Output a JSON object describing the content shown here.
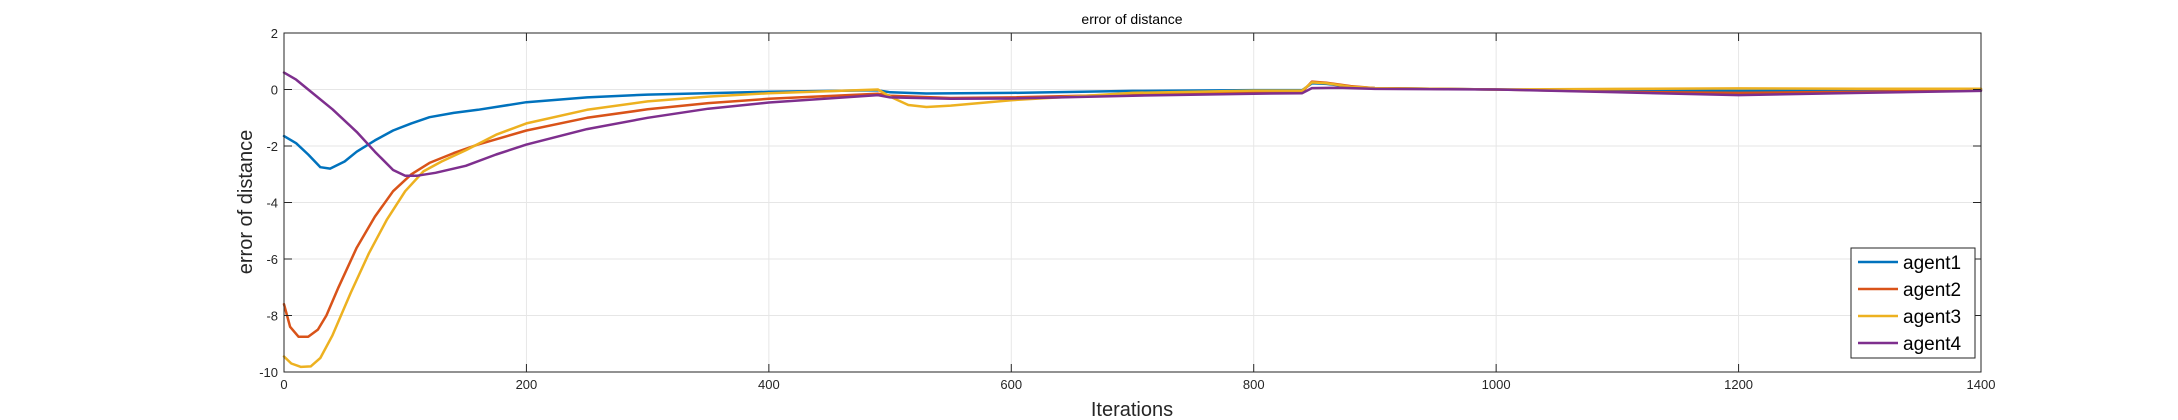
{
  "chart_data": {
    "type": "line",
    "title": "error of distance",
    "xlabel": "Iterations",
    "ylabel": "error of distance",
    "xlim": [
      0,
      1400
    ],
    "ylim": [
      -10,
      2
    ],
    "xticks": [
      0,
      200,
      400,
      600,
      800,
      1000,
      1200,
      1400
    ],
    "yticks": [
      -10,
      -8,
      -6,
      -4,
      -2,
      0,
      2
    ],
    "grid": true,
    "legend_position": "bottom-right",
    "series": [
      {
        "name": "agent1",
        "color": "#0072BD",
        "points": [
          [
            0,
            -1.65
          ],
          [
            10,
            -1.9
          ],
          [
            20,
            -2.3
          ],
          [
            30,
            -2.75
          ],
          [
            38,
            -2.8
          ],
          [
            50,
            -2.55
          ],
          [
            60,
            -2.2
          ],
          [
            75,
            -1.8
          ],
          [
            90,
            -1.45
          ],
          [
            105,
            -1.2
          ],
          [
            120,
            -0.98
          ],
          [
            140,
            -0.83
          ],
          [
            160,
            -0.72
          ],
          [
            200,
            -0.45
          ],
          [
            250,
            -0.28
          ],
          [
            300,
            -0.18
          ],
          [
            400,
            -0.08
          ],
          [
            490,
            -0.03
          ],
          [
            500,
            -0.1
          ],
          [
            530,
            -0.14
          ],
          [
            600,
            -0.12
          ],
          [
            700,
            -0.05
          ],
          [
            800,
            -0.02
          ],
          [
            840,
            -0.02
          ],
          [
            848,
            0.22
          ],
          [
            860,
            0.2
          ],
          [
            880,
            0.1
          ],
          [
            900,
            0.05
          ],
          [
            1000,
            0.0
          ],
          [
            1100,
            -0.03
          ],
          [
            1200,
            -0.05
          ],
          [
            1300,
            -0.03
          ],
          [
            1400,
            0.0
          ]
        ]
      },
      {
        "name": "agent2",
        "color": "#D95319",
        "points": [
          [
            0,
            -7.6
          ],
          [
            5,
            -8.4
          ],
          [
            12,
            -8.75
          ],
          [
            20,
            -8.75
          ],
          [
            28,
            -8.5
          ],
          [
            35,
            -8.0
          ],
          [
            45,
            -7.0
          ],
          [
            60,
            -5.6
          ],
          [
            75,
            -4.5
          ],
          [
            90,
            -3.6
          ],
          [
            105,
            -3.0
          ],
          [
            120,
            -2.6
          ],
          [
            140,
            -2.25
          ],
          [
            160,
            -1.95
          ],
          [
            200,
            -1.45
          ],
          [
            250,
            -1.0
          ],
          [
            300,
            -0.7
          ],
          [
            350,
            -0.48
          ],
          [
            400,
            -0.33
          ],
          [
            490,
            -0.15
          ],
          [
            500,
            -0.22
          ],
          [
            550,
            -0.3
          ],
          [
            600,
            -0.28
          ],
          [
            700,
            -0.18
          ],
          [
            800,
            -0.1
          ],
          [
            840,
            -0.08
          ],
          [
            848,
            0.28
          ],
          [
            860,
            0.24
          ],
          [
            880,
            0.12
          ],
          [
            900,
            0.05
          ],
          [
            1000,
            0.0
          ],
          [
            1100,
            -0.08
          ],
          [
            1200,
            -0.12
          ],
          [
            1300,
            -0.08
          ],
          [
            1400,
            -0.02
          ]
        ]
      },
      {
        "name": "agent3",
        "color": "#EDB120",
        "points": [
          [
            0,
            -9.45
          ],
          [
            6,
            -9.7
          ],
          [
            14,
            -9.82
          ],
          [
            22,
            -9.8
          ],
          [
            30,
            -9.5
          ],
          [
            40,
            -8.7
          ],
          [
            55,
            -7.2
          ],
          [
            70,
            -5.8
          ],
          [
            85,
            -4.6
          ],
          [
            100,
            -3.6
          ],
          [
            115,
            -2.9
          ],
          [
            130,
            -2.55
          ],
          [
            150,
            -2.15
          ],
          [
            175,
            -1.6
          ],
          [
            200,
            -1.2
          ],
          [
            250,
            -0.72
          ],
          [
            300,
            -0.42
          ],
          [
            350,
            -0.25
          ],
          [
            400,
            -0.13
          ],
          [
            490,
            0.0
          ],
          [
            500,
            -0.25
          ],
          [
            515,
            -0.55
          ],
          [
            530,
            -0.62
          ],
          [
            550,
            -0.57
          ],
          [
            600,
            -0.38
          ],
          [
            650,
            -0.25
          ],
          [
            700,
            -0.12
          ],
          [
            800,
            -0.04
          ],
          [
            840,
            -0.04
          ],
          [
            848,
            0.25
          ],
          [
            860,
            0.22
          ],
          [
            880,
            0.1
          ],
          [
            900,
            0.05
          ],
          [
            1000,
            0.0
          ],
          [
            1100,
            0.02
          ],
          [
            1200,
            0.04
          ],
          [
            1300,
            0.03
          ],
          [
            1400,
            0.03
          ]
        ]
      },
      {
        "name": "agent4",
        "color": "#7E2F8E",
        "points": [
          [
            0,
            0.6
          ],
          [
            10,
            0.35
          ],
          [
            20,
            0.0
          ],
          [
            40,
            -0.7
          ],
          [
            60,
            -1.5
          ],
          [
            75,
            -2.2
          ],
          [
            90,
            -2.85
          ],
          [
            100,
            -3.05
          ],
          [
            110,
            -3.05
          ],
          [
            125,
            -2.95
          ],
          [
            150,
            -2.7
          ],
          [
            175,
            -2.3
          ],
          [
            200,
            -1.95
          ],
          [
            250,
            -1.4
          ],
          [
            300,
            -1.0
          ],
          [
            350,
            -0.68
          ],
          [
            400,
            -0.46
          ],
          [
            490,
            -0.2
          ],
          [
            500,
            -0.28
          ],
          [
            550,
            -0.33
          ],
          [
            600,
            -0.32
          ],
          [
            700,
            -0.22
          ],
          [
            800,
            -0.15
          ],
          [
            840,
            -0.13
          ],
          [
            848,
            0.05
          ],
          [
            870,
            0.06
          ],
          [
            880,
            0.05
          ],
          [
            900,
            0.02
          ],
          [
            1000,
            0.0
          ],
          [
            1100,
            -0.1
          ],
          [
            1200,
            -0.2
          ],
          [
            1300,
            -0.12
          ],
          [
            1400,
            -0.05
          ]
        ]
      }
    ]
  }
}
